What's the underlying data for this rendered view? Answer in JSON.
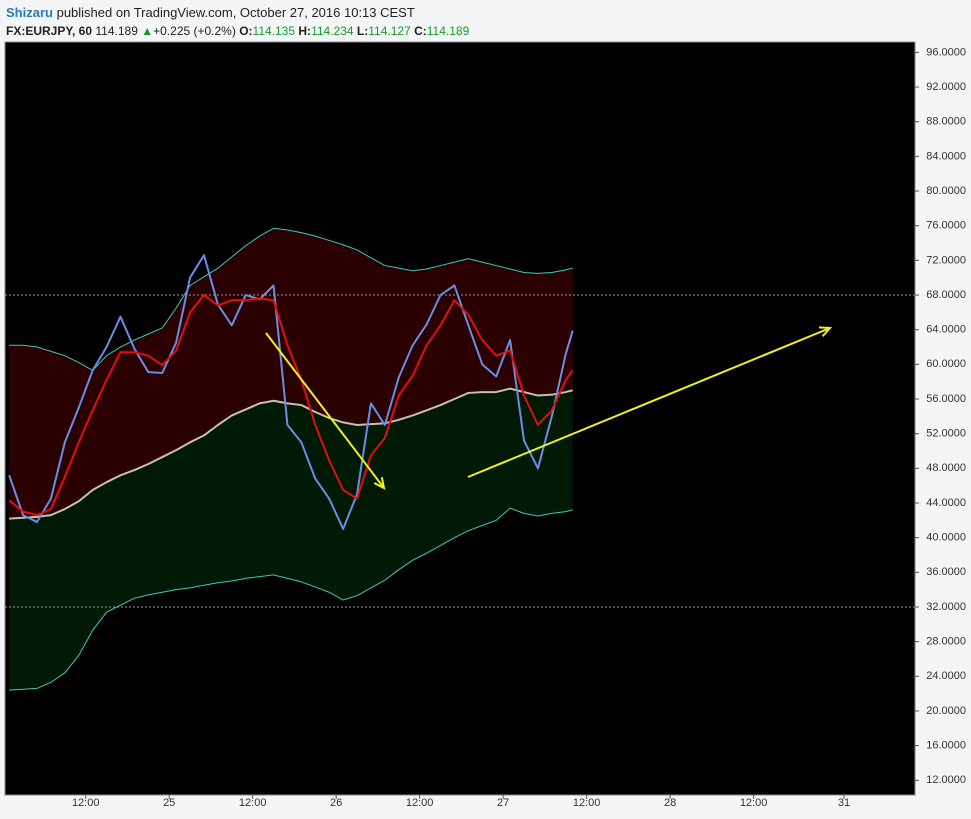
{
  "header": {
    "author": "Shizaru",
    "published": "published on TradingView.com, October 27, 2016 10:13 CEST",
    "symbol": "FX:EURJPY, 60",
    "last": "114.189",
    "change": "+0.225 (+0.2%)",
    "open_label": "O:",
    "open": "114.135",
    "high_label": "H:",
    "high": "114.234",
    "low_label": "L:",
    "low": "114.127",
    "close_label": "C:",
    "close": "114.189"
  },
  "chart_data": {
    "type": "line",
    "x": [
      -23,
      -21,
      -19,
      -17,
      -15,
      -13,
      -11,
      -9,
      -7,
      -5,
      -3,
      -1,
      1,
      3,
      5,
      7,
      9,
      11,
      13,
      15,
      17,
      19,
      21,
      23,
      25,
      27,
      29,
      31,
      33,
      35,
      37,
      39,
      41,
      43,
      45,
      47,
      49,
      51,
      53,
      55,
      57,
      58
    ],
    "series": [
      {
        "color": "#3cc8c0",
        "values": [
          62.2,
          62.2,
          62,
          61.5,
          61,
          60.2,
          59.3,
          61,
          62,
          62.8,
          63.5,
          64.2,
          66.5,
          69.1,
          70.1,
          71.1,
          72.4,
          73.7,
          74.8,
          75.7,
          75.5,
          75.2,
          74.8,
          74.3,
          73.8,
          73.2,
          72.3,
          71.4,
          71.1,
          70.8,
          71,
          71.4,
          71.8,
          72.2,
          71.8,
          71.4,
          71,
          70.6,
          70.5,
          70.6,
          70.9,
          71.1
        ]
      },
      {
        "color": "#c8c0b0",
        "values": [
          42.2,
          42.3,
          42.4,
          42.6,
          43.3,
          44.2,
          45.5,
          46.4,
          47.2,
          47.8,
          48.5,
          49.3,
          50.1,
          51,
          51.8,
          53,
          54.1,
          54.8,
          55.5,
          55.8,
          55.5,
          55.3,
          54.5,
          53.8,
          53.3,
          53,
          53.1,
          53.2,
          53.6,
          54.1,
          54.7,
          55.3,
          56,
          56.7,
          56.8,
          56.8,
          57.2,
          56.8,
          56.4,
          56.5,
          56.8,
          57.0
        ]
      },
      {
        "color": "#3cc8c0",
        "values": [
          22.4,
          22.5,
          22.6,
          23.3,
          24.4,
          26.4,
          29.3,
          31.4,
          32.2,
          33,
          33.4,
          33.7,
          34,
          34.2,
          34.5,
          34.8,
          35,
          35.3,
          35.5,
          35.7,
          35.3,
          34.9,
          34.3,
          33.7,
          32.8,
          33.3,
          34.2,
          35.1,
          36.3,
          37.4,
          38.2,
          39.1,
          40,
          40.8,
          41.4,
          42,
          43.4,
          42.8,
          42.5,
          42.8,
          43,
          43.2
        ]
      },
      {
        "color": "#6a8ee6",
        "values": [
          47.2,
          42.6,
          41.8,
          44.5,
          51.0,
          55.0,
          59.3,
          62,
          65.5,
          61.8,
          59.1,
          59,
          62.5,
          70,
          72.6,
          66.9,
          64.5,
          68.0,
          67.5,
          69.1,
          53,
          51,
          46.8,
          44.5,
          41,
          45,
          55.5,
          53,
          58.5,
          62.2,
          64.6,
          68,
          69.1,
          64.5,
          60,
          58.6,
          62.8,
          51.2,
          48,
          54,
          61.2,
          63.9
        ]
      },
      {
        "color": "#e01010",
        "values": [
          44.3,
          43,
          42.6,
          43.3,
          47,
          51,
          54.7,
          58.2,
          61.4,
          61.4,
          61,
          59.9,
          61.6,
          66,
          68,
          66.8,
          67.4,
          67.4,
          67.6,
          67.4,
          62.2,
          58.2,
          53,
          48.9,
          45.5,
          44.5,
          49.5,
          51.5,
          56.4,
          58.7,
          62.2,
          64.5,
          67.4,
          65.7,
          62.8,
          61,
          61.6,
          56.4,
          53,
          54.7,
          58.2,
          59.3
        ]
      }
    ],
    "fill_colors": [
      "#2b0000",
      "#001a06"
    ],
    "hlines": [
      68,
      32
    ],
    "hline_color": "#9a9a9a",
    "xlim": [
      -23.6,
      107.2
    ],
    "xticks": [
      {
        "value": -12,
        "label": "12:00"
      },
      {
        "value": 0,
        "label": "25"
      },
      {
        "value": 12,
        "label": "12:00"
      },
      {
        "value": 24,
        "label": "26"
      },
      {
        "value": 36,
        "label": "12:00"
      },
      {
        "value": 48,
        "label": "27"
      },
      {
        "value": 60,
        "label": "12:00"
      },
      {
        "value": 72,
        "label": "28"
      },
      {
        "value": 84,
        "label": "12:00"
      },
      {
        "value": 97,
        "label": "31"
      }
    ],
    "ylim": [
      10.3,
      97.2
    ],
    "yticks": [
      {
        "value": 12,
        "label": "12.0000"
      },
      {
        "value": 16,
        "label": "16.0000"
      },
      {
        "value": 20,
        "label": "20.0000"
      },
      {
        "value": 24,
        "label": "24.0000"
      },
      {
        "value": 28,
        "label": "28.0000"
      },
      {
        "value": 32,
        "label": "32.0000"
      },
      {
        "value": 36,
        "label": "36.0000"
      },
      {
        "value": 40,
        "label": "40.0000"
      },
      {
        "value": 44,
        "label": "44.0000"
      },
      {
        "value": 48,
        "label": "48.0000"
      },
      {
        "value": 52,
        "label": "52.0000"
      },
      {
        "value": 56,
        "label": "56.0000"
      },
      {
        "value": 60,
        "label": "60.0000"
      },
      {
        "value": 64,
        "label": "64.0000"
      },
      {
        "value": 68,
        "label": "68.0000"
      },
      {
        "value": 72,
        "label": "72.0000"
      },
      {
        "value": 76,
        "label": "76.0000"
      },
      {
        "value": 80,
        "label": "80.0000"
      },
      {
        "value": 84,
        "label": "84.0000"
      },
      {
        "value": 88,
        "label": "88.0000"
      },
      {
        "value": 92,
        "label": "92.0000"
      },
      {
        "value": 96,
        "label": "96.0000"
      }
    ],
    "background": "#000000"
  }
}
